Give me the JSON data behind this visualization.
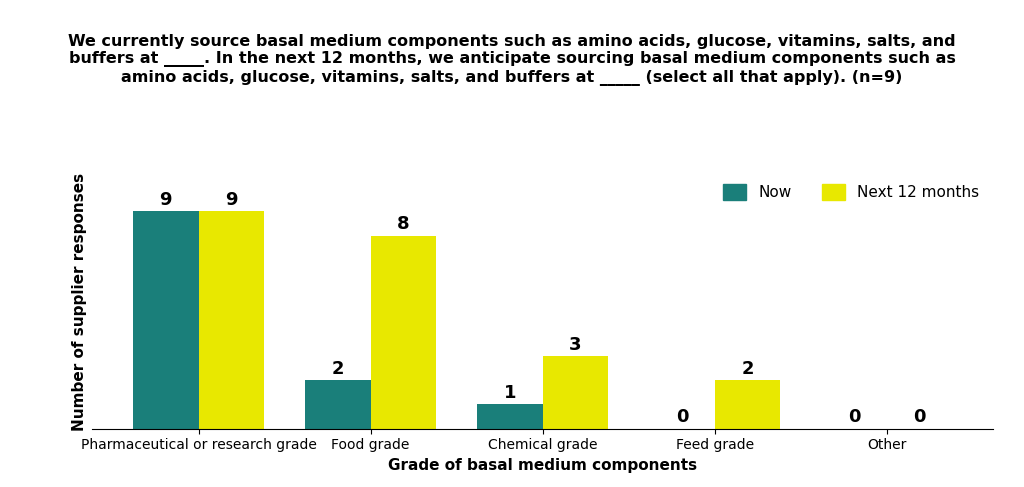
{
  "title": "We currently source basal medium components such as amino acids, glucose, vitamins, salts, and\nbuffers at _____. In the next 12 months, we anticipate sourcing basal medium components such as\namino acids, glucose, vitamins, salts, and buffers at _____ (select all that apply). (n=9)",
  "categories": [
    "Pharmaceutical or research grade",
    "Food grade",
    "Chemical grade",
    "Feed grade",
    "Other"
  ],
  "now_values": [
    9,
    2,
    1,
    0,
    0
  ],
  "next_values": [
    9,
    8,
    3,
    2,
    0
  ],
  "now_color": "#1a7f7a",
  "next_color": "#e8e800",
  "xlabel": "Grade of basal medium components",
  "ylabel": "Number of supplier responses",
  "legend_now": "Now",
  "legend_next": "Next 12 months",
  "bar_width": 0.38,
  "ylim": [
    0,
    10.5
  ],
  "background_color": "#ffffff",
  "title_fontsize": 11.5,
  "label_fontsize": 11,
  "tick_fontsize": 10,
  "value_fontsize": 13
}
